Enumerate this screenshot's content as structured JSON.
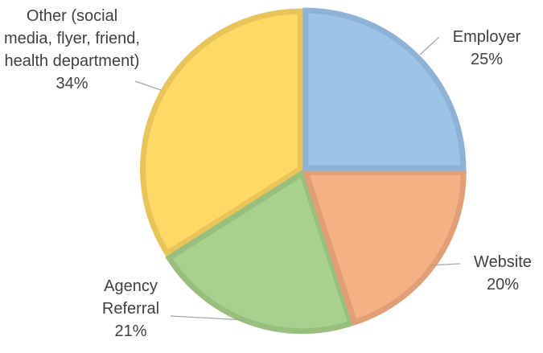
{
  "chart_data": {
    "type": "pie",
    "categories": [
      "Employer",
      "Website",
      "Agency Referral",
      "Other (social media, flyer, friend, health department)"
    ],
    "values": [
      25,
      20,
      21,
      34
    ],
    "value_labels": [
      "25%",
      "20%",
      "21%",
      "34%"
    ],
    "colors": [
      "#9dc3e6",
      "#f4b183",
      "#a9d18e",
      "#ffd966"
    ],
    "edge_colors": [
      "#8eb2d6",
      "#e09f76",
      "#98bf7e",
      "#e8c459"
    ]
  }
}
